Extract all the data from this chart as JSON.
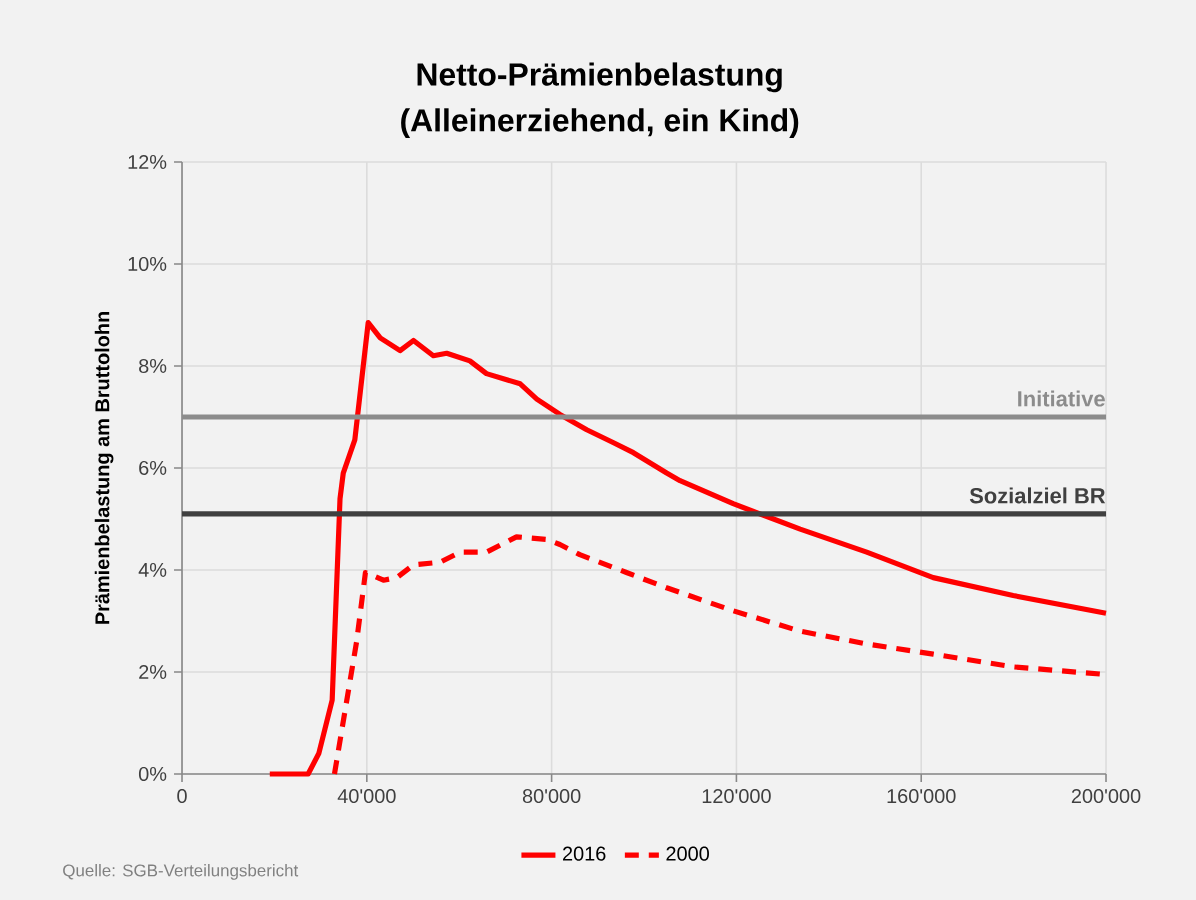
{
  "chart_data": {
    "type": "line",
    "title": "Netto-Prämienbelastung",
    "subtitle": "(Alleinerziehend, ein Kind)",
    "ylabel": "Prämienbelastung am Bruttolohn",
    "xlim": [
      0,
      200000
    ],
    "ylim": [
      0,
      12
    ],
    "xticks": [
      0,
      {
        "value": 40000,
        "label": "40'000"
      },
      {
        "value": 80000,
        "label": "80'000"
      },
      {
        "value": 120000,
        "label": "120'000"
      },
      {
        "value": 160000,
        "label": "160'000"
      },
      {
        "value": 200000,
        "label": "200'000"
      }
    ],
    "yticks": [
      {
        "value": 0,
        "label": "0%"
      },
      {
        "value": 2,
        "label": "2%"
      },
      {
        "value": 4,
        "label": "4%"
      },
      {
        "value": 6,
        "label": "6%"
      },
      {
        "value": 8,
        "label": "8%"
      },
      {
        "value": 10,
        "label": "10%"
      },
      {
        "value": 12,
        "label": "12%"
      }
    ],
    "grid": true,
    "legend": "bottom",
    "marker": "none",
    "series": [
      {
        "name": "2016",
        "color": "#ff0000",
        "line_style": "solid",
        "x": [
          19000,
          27300,
          29600,
          32500,
          34200,
          34900,
          37400,
          40300,
          42900,
          47200,
          50100,
          54400,
          57300,
          62300,
          65900,
          73200,
          76800,
          81800,
          87600,
          93300,
          97700,
          104900,
          107800,
          119300,
          133800,
          148200,
          162600,
          179900,
          200000
        ],
        "values": [
          0,
          0,
          0.4,
          1.45,
          5.4,
          5.9,
          6.55,
          8.85,
          8.55,
          8.3,
          8.5,
          8.2,
          8.25,
          8.1,
          7.85,
          7.65,
          7.35,
          7.05,
          6.75,
          6.5,
          6.3,
          5.9,
          5.75,
          5.3,
          4.8,
          4.35,
          3.85,
          3.5,
          3.15
        ]
      },
      {
        "name": "2000",
        "color": "#ff0000",
        "line_style": "dashed",
        "x": [
          33000,
          35400,
          37800,
          39700,
          43600,
          46500,
          50100,
          55800,
          60200,
          65900,
          72400,
          78900,
          81800,
          86100,
          96200,
          104900,
          119300,
          133800,
          148200,
          162600,
          179900,
          200000
        ],
        "values": [
          0,
          1.3,
          2.6,
          3.95,
          3.8,
          3.85,
          4.1,
          4.15,
          4.35,
          4.35,
          4.65,
          4.6,
          4.5,
          4.3,
          3.95,
          3.65,
          3.2,
          2.8,
          2.55,
          2.35,
          2.1,
          1.95
        ]
      }
    ],
    "ref_lines": [
      {
        "axis": "y",
        "value": 7,
        "label": "Initiative",
        "color": "#8c8c8c"
      },
      {
        "axis": "y",
        "value": 5.1,
        "label": "Sozialziel BR",
        "color": "#404040"
      }
    ],
    "annotations": [
      "Quelle: SGB-Verteilungsbericht"
    ]
  }
}
